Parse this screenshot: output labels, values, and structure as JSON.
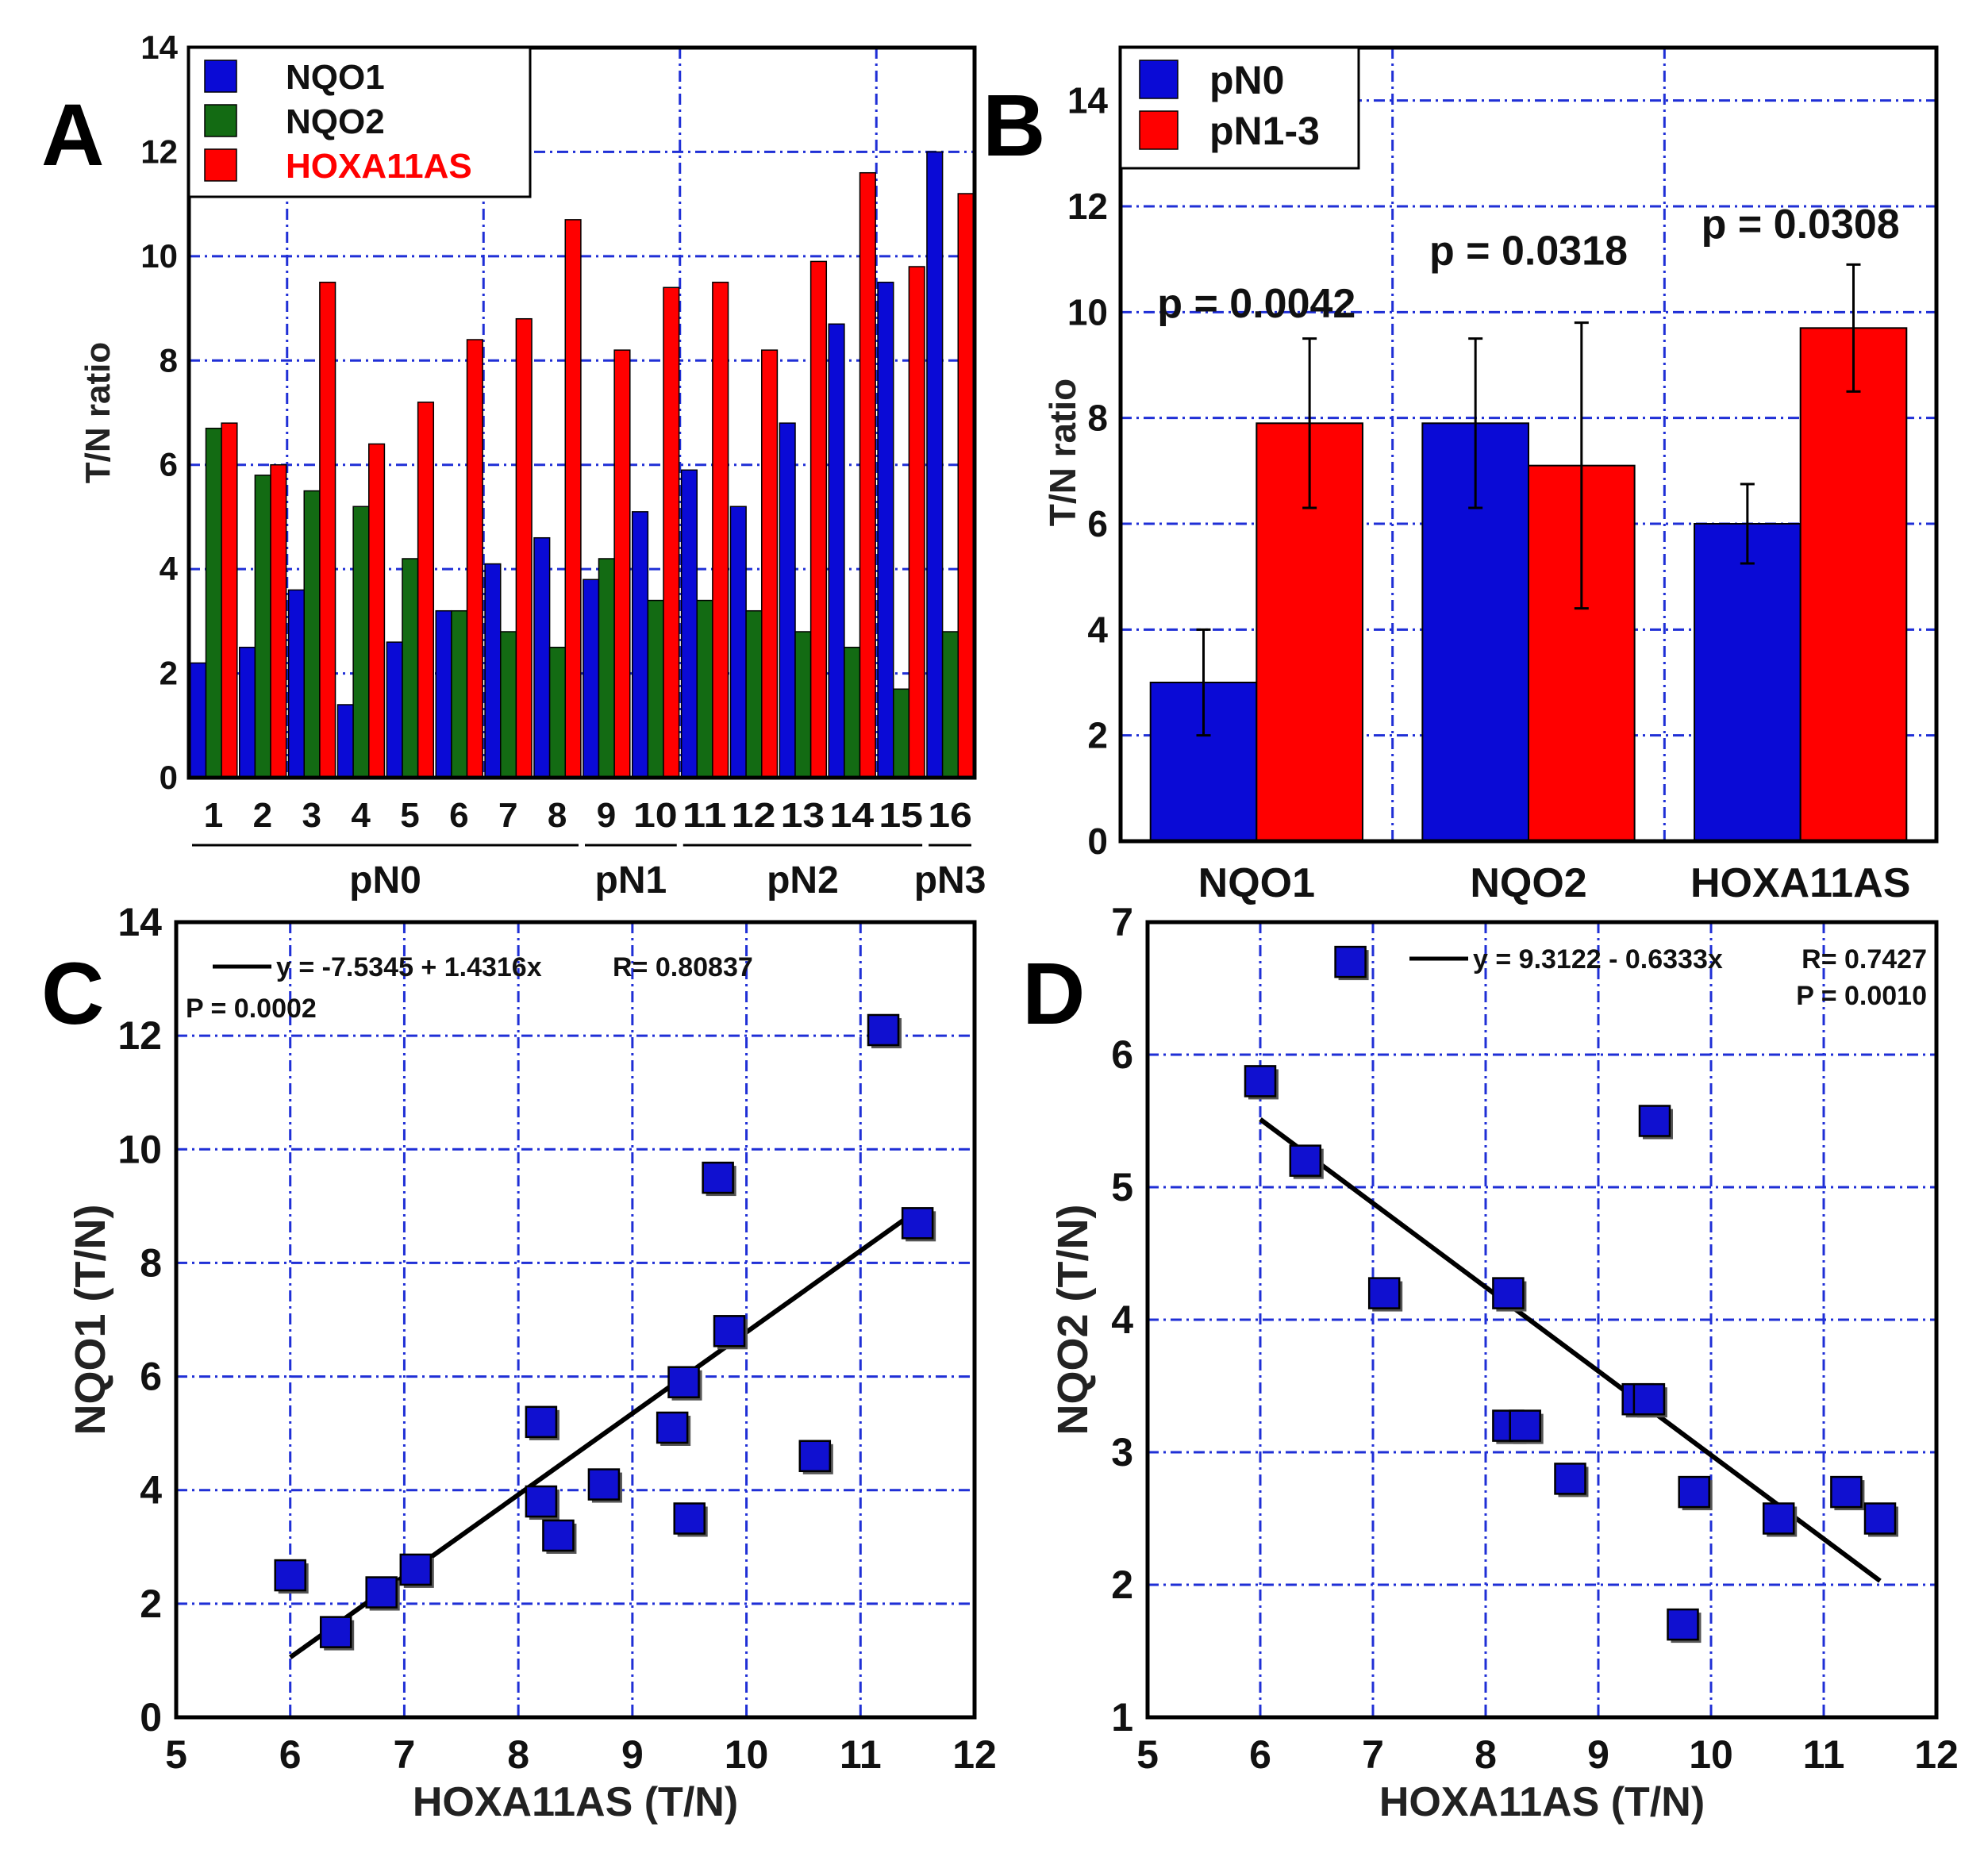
{
  "chart_data": [
    {
      "panel": "A",
      "type": "bar",
      "ylabel": "T/N ratio",
      "ylim": [
        0,
        14
      ],
      "yticks": [
        "0",
        "2",
        "4",
        "6",
        "8",
        "10",
        "12",
        "14"
      ],
      "categories": [
        "1",
        "2",
        "3",
        "4",
        "5",
        "6",
        "7",
        "8",
        "9",
        "10",
        "11",
        "12",
        "13",
        "14",
        "15",
        "16"
      ],
      "groups": [
        {
          "label": "pN0",
          "from": 1,
          "to": 8
        },
        {
          "label": "pN1",
          "from": 9,
          "to": 10
        },
        {
          "label": "pN2",
          "from": 11,
          "to": 15
        },
        {
          "label": "pN3",
          "from": 16,
          "to": 16
        }
      ],
      "series": [
        {
          "name": "NQO1",
          "color": "#0a0ad6",
          "values": [
            2.2,
            2.5,
            3.6,
            1.4,
            2.6,
            3.2,
            4.1,
            4.6,
            3.8,
            5.1,
            5.9,
            5.2,
            6.8,
            8.7,
            9.5,
            12.0
          ]
        },
        {
          "name": "NQO2",
          "color": "#136b13",
          "values": [
            6.7,
            5.8,
            5.5,
            5.2,
            4.2,
            3.2,
            2.8,
            2.5,
            4.2,
            3.4,
            3.4,
            3.2,
            2.8,
            2.5,
            1.7,
            2.8
          ]
        },
        {
          "name": "HOXA11AS",
          "color": "#ff0000",
          "values": [
            6.8,
            6.0,
            9.5,
            6.4,
            7.2,
            8.4,
            8.8,
            10.7,
            8.2,
            9.4,
            9.5,
            8.2,
            9.9,
            11.6,
            9.8,
            11.2
          ]
        }
      ],
      "legend_position": "top-left"
    },
    {
      "panel": "B",
      "type": "bar",
      "ylabel": "T/N ratio",
      "ylim": [
        0,
        15
      ],
      "yticks": [
        "0",
        "2",
        "4",
        "6",
        "8",
        "10",
        "12",
        "14"
      ],
      "categories": [
        "NQO1",
        "NQO2",
        "HOXA11AS"
      ],
      "series": [
        {
          "name": "pN0",
          "color": "#0a0ad6",
          "values": [
            3.0,
            7.9,
            6.0
          ],
          "errors": [
            1.0,
            1.6,
            0.75
          ]
        },
        {
          "name": "pN1-3",
          "color": "#ff0000",
          "values": [
            7.9,
            7.1,
            9.7
          ],
          "errors": [
            1.6,
            2.7,
            1.2
          ]
        }
      ],
      "pvalues": [
        "p = 0.0042",
        "p = 0.0318",
        "p = 0.0308"
      ],
      "legend_position": "top-left"
    },
    {
      "panel": "C",
      "type": "scatter",
      "xlabel": "HOXA11AS (T/N)",
      "ylabel": "NQO1 (T/N)",
      "xlim": [
        5,
        12
      ],
      "ylim": [
        0,
        14
      ],
      "xticks": [
        "5",
        "6",
        "7",
        "8",
        "9",
        "10",
        "11",
        "12"
      ],
      "yticks": [
        "0",
        "2",
        "4",
        "6",
        "8",
        "10",
        "12",
        "14"
      ],
      "points": [
        [
          6.0,
          2.5
        ],
        [
          6.4,
          1.5
        ],
        [
          6.8,
          2.2
        ],
        [
          7.1,
          2.6
        ],
        [
          8.2,
          3.8
        ],
        [
          8.2,
          5.2
        ],
        [
          8.35,
          3.2
        ],
        [
          8.75,
          4.1
        ],
        [
          9.35,
          5.1
        ],
        [
          9.45,
          5.9
        ],
        [
          9.5,
          3.5
        ],
        [
          9.75,
          9.5
        ],
        [
          9.85,
          6.8
        ],
        [
          10.6,
          4.6
        ],
        [
          11.2,
          12.1
        ],
        [
          11.5,
          8.7
        ]
      ],
      "fit": {
        "intercept": -7.5345,
        "slope": 1.4316,
        "x_range": [
          6.0,
          11.5
        ]
      },
      "equation": "y = -7.5345 + 1.4316x",
      "r_text": "R= 0.80837",
      "p_text": "P = 0.0002",
      "color": "#1010d0"
    },
    {
      "panel": "D",
      "type": "scatter",
      "xlabel": "HOXA11AS (T/N)",
      "ylabel": "NQO2 (T/N)",
      "xlim": [
        5,
        12
      ],
      "ylim": [
        1,
        7
      ],
      "xticks": [
        "5",
        "6",
        "7",
        "8",
        "9",
        "10",
        "11",
        "12"
      ],
      "yticks": [
        "1",
        "2",
        "3",
        "4",
        "5",
        "6",
        "7"
      ],
      "points": [
        [
          6.0,
          5.8
        ],
        [
          6.4,
          5.2
        ],
        [
          6.8,
          6.7
        ],
        [
          7.1,
          4.2
        ],
        [
          8.2,
          4.2
        ],
        [
          8.2,
          3.2
        ],
        [
          8.35,
          3.2
        ],
        [
          8.75,
          2.8
        ],
        [
          9.35,
          3.4
        ],
        [
          9.45,
          3.4
        ],
        [
          9.5,
          5.5
        ],
        [
          9.75,
          1.7
        ],
        [
          9.85,
          2.7
        ],
        [
          10.6,
          2.5
        ],
        [
          11.2,
          2.7
        ],
        [
          11.5,
          2.5
        ]
      ],
      "fit": {
        "intercept": 9.3122,
        "slope": -0.6333,
        "x_range": [
          6.0,
          11.5
        ]
      },
      "equation": "y = 9.3122 - 0.6333x",
      "r_text": "R= 0.7427",
      "p_text": "P = 0.0010",
      "color": "#1010d0"
    }
  ],
  "panel_letters": [
    "A",
    "B",
    "C",
    "D"
  ]
}
